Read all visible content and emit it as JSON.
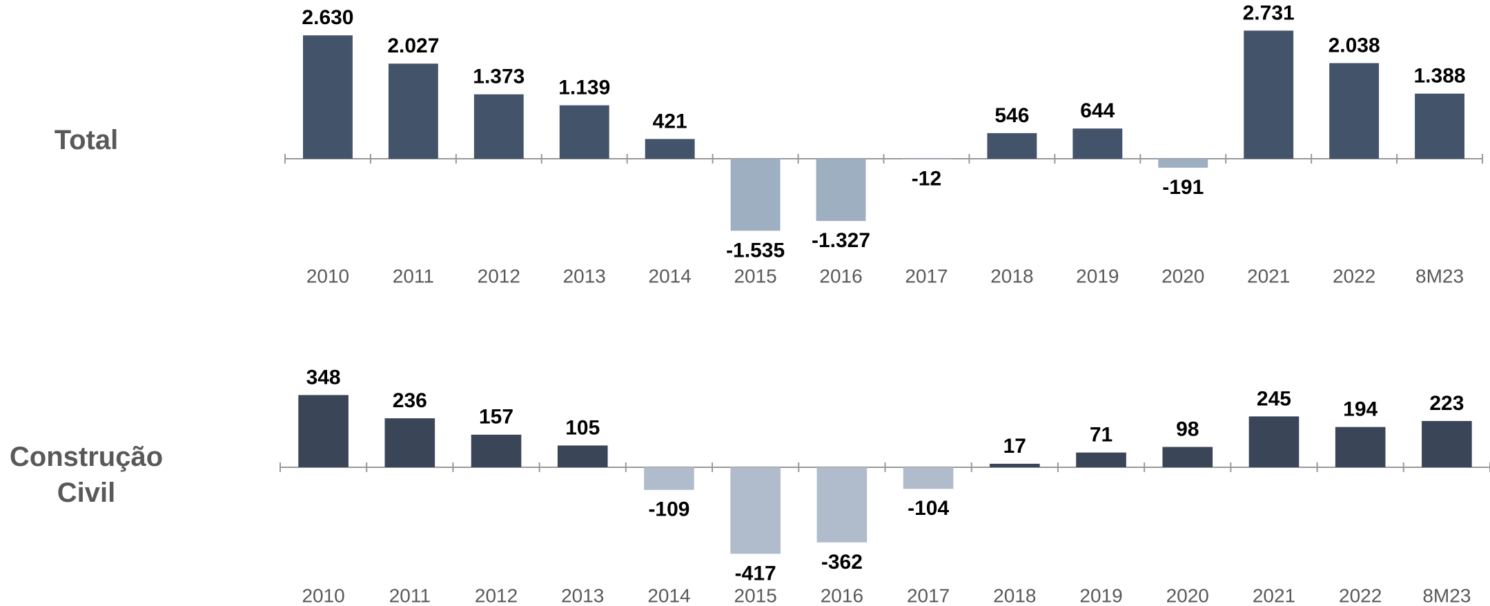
{
  "chart_data": [
    {
      "type": "bar",
      "title": "Total",
      "categories": [
        "2010",
        "2011",
        "2012",
        "2013",
        "2014",
        "2015",
        "2016",
        "2017",
        "2018",
        "2019",
        "2020",
        "2021",
        "2022",
        "8M23"
      ],
      "values": [
        2630,
        2027,
        1373,
        1139,
        421,
        -1535,
        -1327,
        -12,
        546,
        644,
        -191,
        2731,
        2038,
        1388
      ],
      "value_labels": [
        "2.630",
        "2.027",
        "1.373",
        "1.139",
        "421",
        "-1.535",
        "-1.327",
        "-12",
        "546",
        "644",
        "-191",
        "2.731",
        "2.038",
        "1.388"
      ],
      "color": "#435369",
      "negative_color": "#9fafc2"
    },
    {
      "type": "bar",
      "title": "Construção Civil",
      "categories": [
        "2010",
        "2011",
        "2012",
        "2013",
        "2014",
        "2015",
        "2016",
        "2017",
        "2018",
        "2019",
        "2020",
        "2021",
        "2022",
        "8M23"
      ],
      "values": [
        348,
        236,
        157,
        105,
        -109,
        -417,
        -362,
        -104,
        17,
        71,
        98,
        245,
        194,
        223
      ],
      "color": "#3a4558",
      "negative_color": "#b0bccc"
    }
  ]
}
